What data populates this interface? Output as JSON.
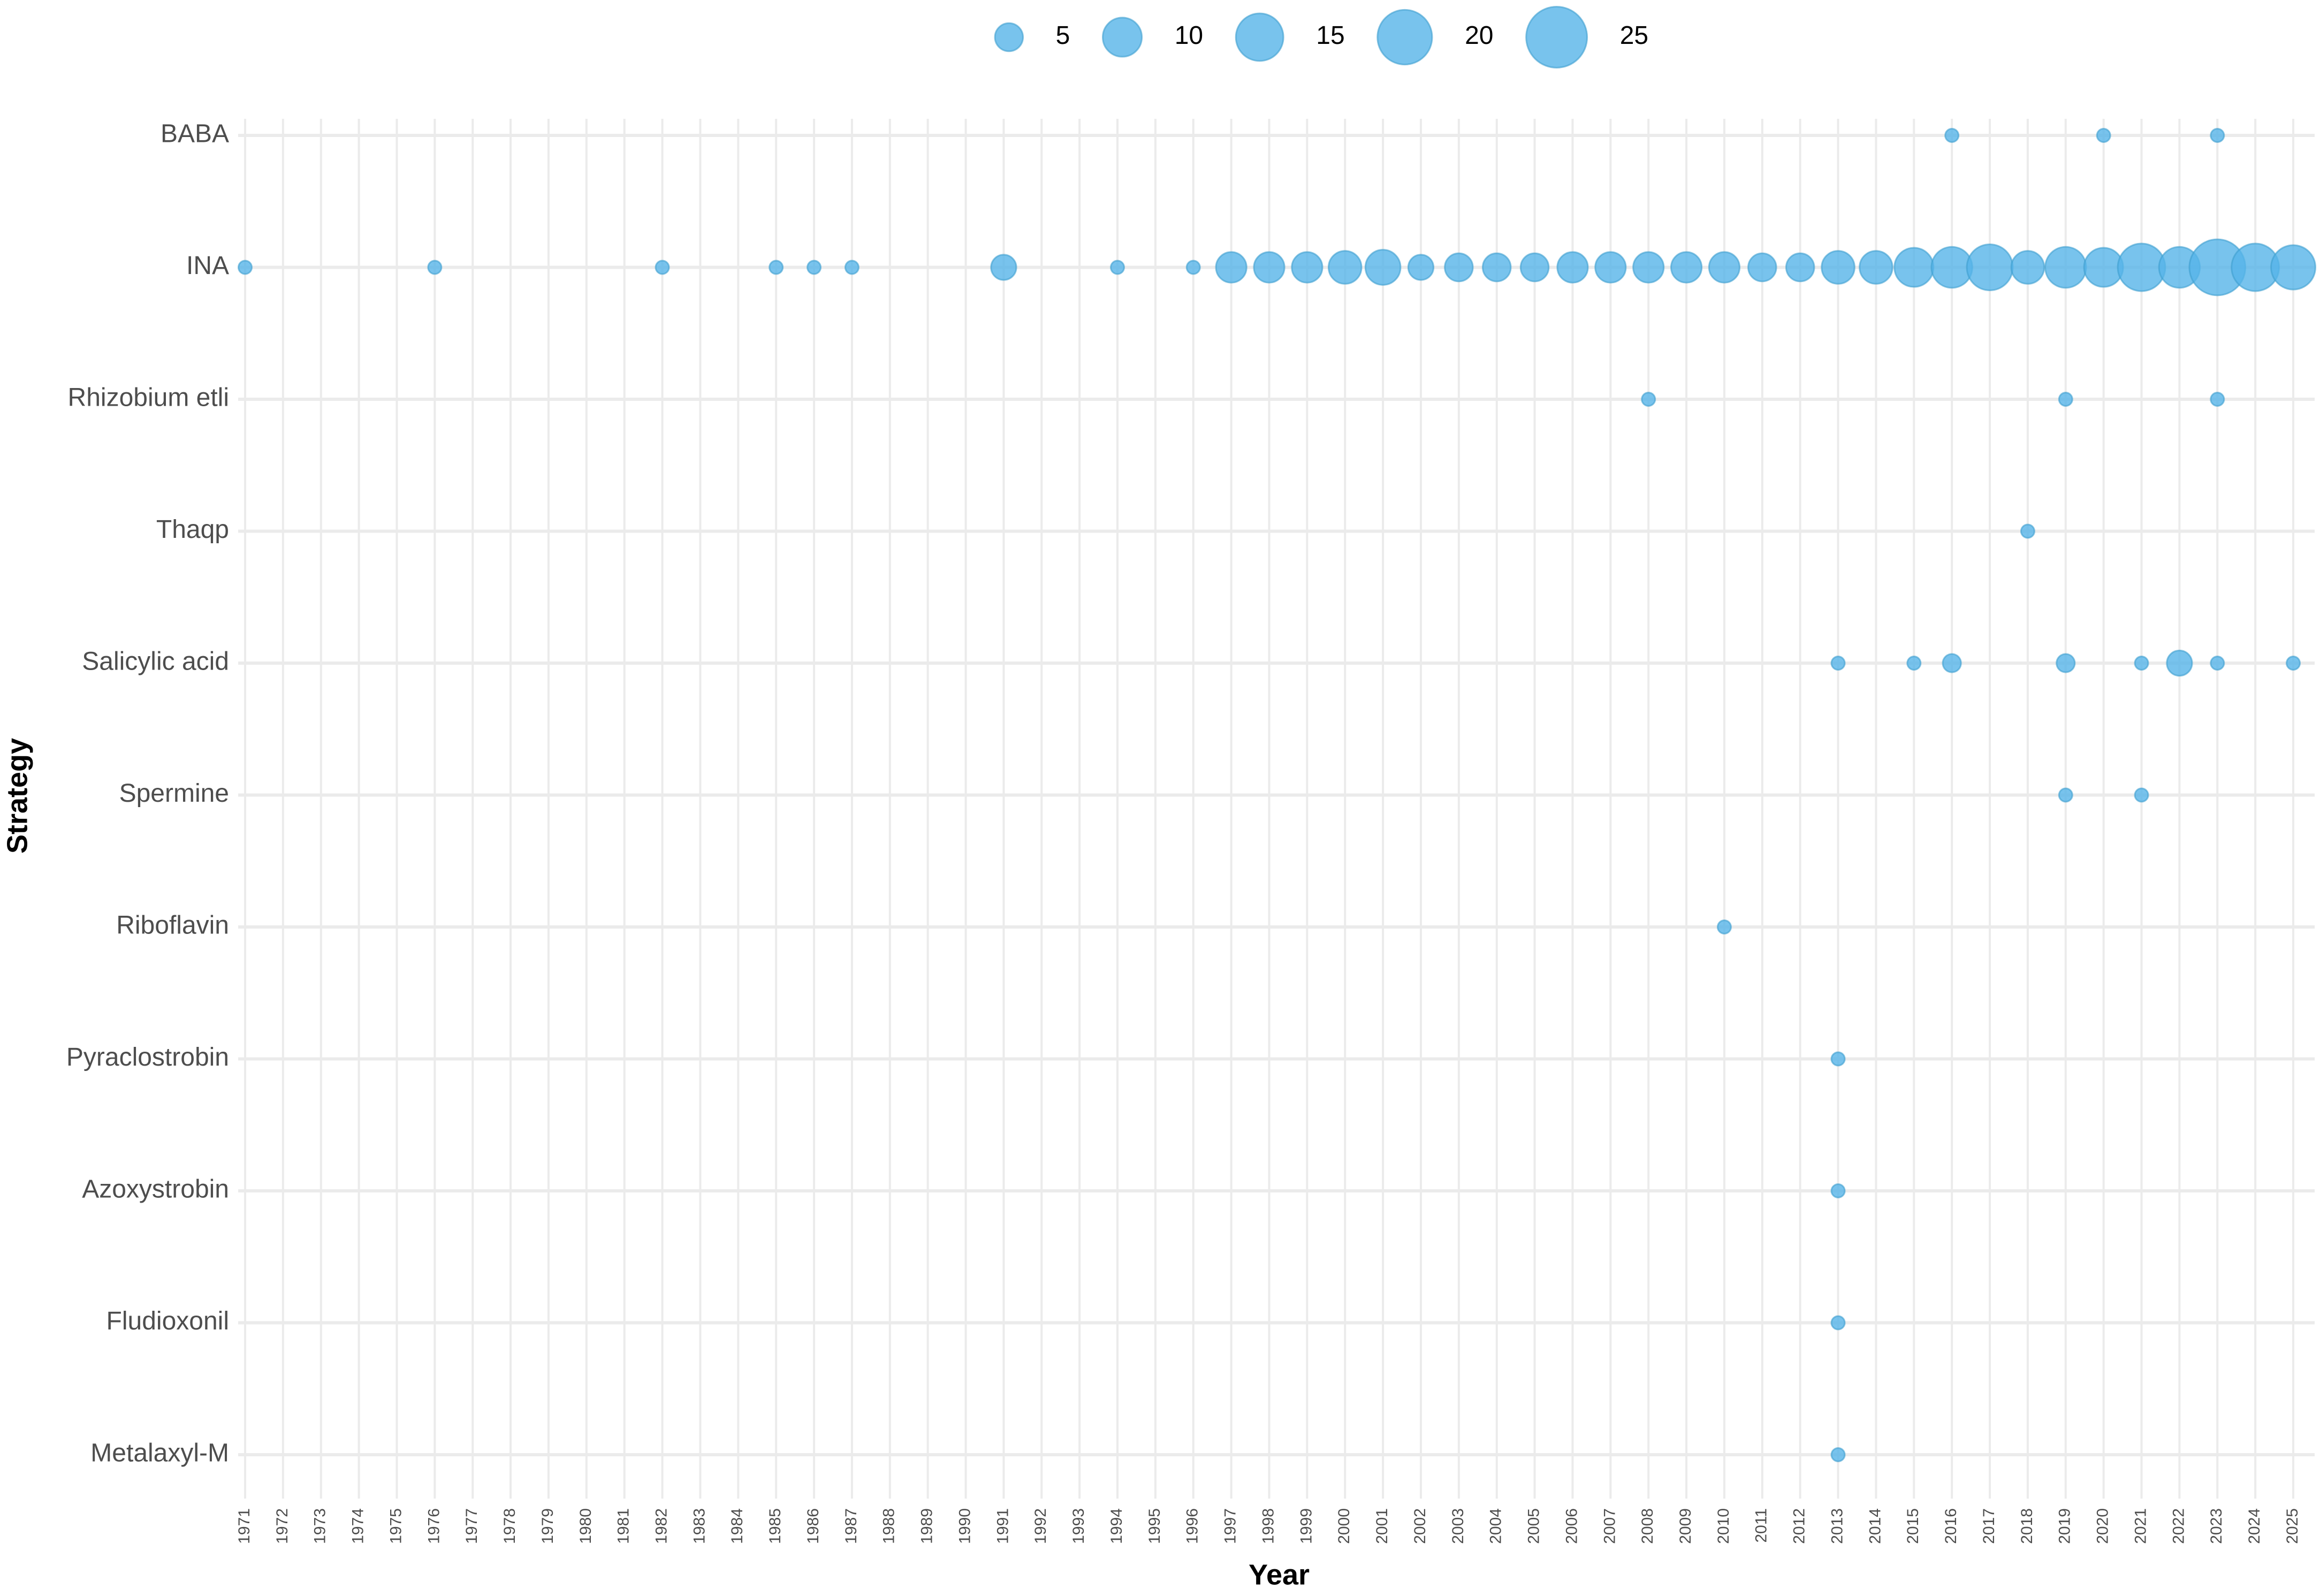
{
  "chart_data": {
    "type": "bubble",
    "x_label": "Year",
    "y_label": "Strategy",
    "color": "#56B4E9",
    "grid": true,
    "legend_position": "top",
    "size_legend": [
      5,
      10,
      15,
      20,
      25
    ],
    "xlim": [
      1971,
      2025
    ],
    "xticks": [
      1971,
      1972,
      1973,
      1974,
      1975,
      1976,
      1977,
      1978,
      1979,
      1980,
      1981,
      1982,
      1983,
      1984,
      1985,
      1986,
      1987,
      1988,
      1989,
      1990,
      1991,
      1992,
      1993,
      1994,
      1995,
      1996,
      1997,
      1998,
      1999,
      2000,
      2001,
      2002,
      2003,
      2004,
      2005,
      2006,
      2007,
      2008,
      2009,
      2010,
      2011,
      2012,
      2013,
      2014,
      2015,
      2016,
      2017,
      2018,
      2019,
      2020,
      2021,
      2022,
      2023,
      2024,
      2025
    ],
    "series": [
      {
        "name": "BABA",
        "x": [
          2016,
          2020,
          2023
        ],
        "values": [
          1,
          1,
          1
        ]
      },
      {
        "name": "INA",
        "x": [
          1971,
          1976,
          1982,
          1985,
          1986,
          1987,
          1991,
          1994,
          1996,
          1997,
          1998,
          1999,
          2000,
          2001,
          2002,
          2003,
          2004,
          2005,
          2006,
          2007,
          2008,
          2009,
          2010,
          2011,
          2012,
          2013,
          2014,
          2015,
          2016,
          2017,
          2018,
          2019,
          2020,
          2021,
          2022,
          2023,
          2024,
          2025
        ],
        "values": [
          1,
          1,
          1,
          1,
          1,
          1,
          4,
          1,
          1,
          6,
          6,
          6,
          7,
          8,
          4,
          5,
          5,
          5,
          6,
          6,
          6,
          6,
          6,
          5,
          5,
          7,
          7,
          10,
          11,
          14,
          7,
          11,
          10,
          15,
          11,
          21,
          15,
          13
        ]
      },
      {
        "name": "Rhizobium etli",
        "x": [
          2008,
          2019,
          2023
        ],
        "values": [
          1,
          1,
          1
        ]
      },
      {
        "name": "Thaqp",
        "x": [
          2018
        ],
        "values": [
          1
        ]
      },
      {
        "name": "Salicylic acid",
        "x": [
          2013,
          2015,
          2016,
          2019,
          2021,
          2022,
          2023,
          2025
        ],
        "values": [
          1,
          1,
          2,
          2,
          1,
          4,
          1,
          1
        ]
      },
      {
        "name": "Spermine",
        "x": [
          2019,
          2021
        ],
        "values": [
          1,
          1
        ]
      },
      {
        "name": "Riboflavin",
        "x": [
          2010
        ],
        "values": [
          1
        ]
      },
      {
        "name": "Pyraclostrobin",
        "x": [
          2013
        ],
        "values": [
          1
        ]
      },
      {
        "name": "Azoxystrobin",
        "x": [
          2013
        ],
        "values": [
          1
        ]
      },
      {
        "name": "Fludioxonil",
        "x": [
          2013
        ],
        "values": [
          1
        ]
      },
      {
        "name": "Metalaxyl-M",
        "x": [
          2013
        ],
        "values": [
          1
        ]
      }
    ]
  }
}
